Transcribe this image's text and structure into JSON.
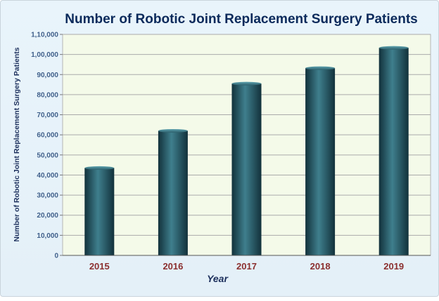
{
  "chart_data": {
    "type": "bar",
    "title": "Number of Robotic Joint Replacement Surgery Patients",
    "xlabel": "Year",
    "ylabel": "Number of Robotic Joint Replacement Surgery Patients",
    "categories": [
      "2015",
      "2016",
      "2017",
      "2018",
      "2019"
    ],
    "values": [
      43500,
      62000,
      85500,
      93200,
      103300
    ],
    "ylim": [
      0,
      110000
    ],
    "yticks": [
      0,
      10000,
      20000,
      30000,
      40000,
      50000,
      60000,
      70000,
      80000,
      90000,
      100000,
      110000
    ],
    "ytick_labels": [
      "0",
      "10,000",
      "20,000",
      "30,000",
      "40,000",
      "50,000",
      "60,000",
      "70,000",
      "80,000",
      "90,000",
      "1,00,000",
      "1,10,000"
    ],
    "grid": true,
    "legend": "none"
  },
  "colors": {
    "title": "#0b2a5b",
    "ylabel": "#1c2f5c",
    "xlabel": "#1c2f5c",
    "category_label": "#8b2f2f",
    "ytick_label": "#3f5f8a",
    "plot_bg": "#f4fae9",
    "grid": "#aaaaaa",
    "bar_dark": "#12313b",
    "bar_light": "#3f7f8d"
  }
}
